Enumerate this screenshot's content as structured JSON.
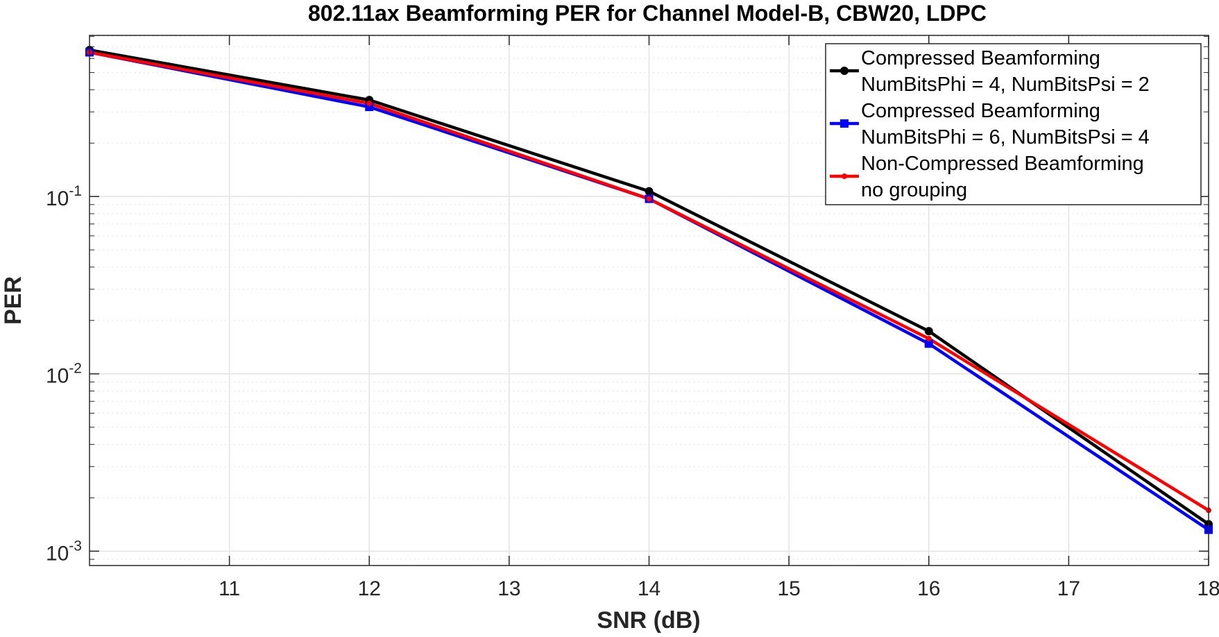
{
  "chart_data": {
    "type": "line",
    "title": "802.11ax Beamforming PER for Channel Model-B, CBW20, LDPC",
    "xlabel": "SNR (dB)",
    "ylabel": "PER",
    "xlim": [
      10,
      18
    ],
    "ylim": [
      0.00083,
      0.81
    ],
    "yscale": "log",
    "grid": true,
    "minor_grid": true,
    "legend_placement": "top-right",
    "x_ticks": [
      "11",
      "12",
      "13",
      "14",
      "15",
      "16",
      "17",
      "18"
    ],
    "y_ticks": [
      {
        "base": "10",
        "exp": "-1",
        "value": 0.1
      },
      {
        "base": "10",
        "exp": "-2",
        "value": 0.01
      },
      {
        "base": "10",
        "exp": "-3",
        "value": 0.001
      }
    ],
    "x": [
      10,
      12,
      14,
      16,
      18
    ],
    "series": [
      {
        "name": [
          "Compressed Beamforming",
          "NumBitsPhi = 4, NumBitsPsi = 2"
        ],
        "color": "#000000",
        "marker": "circle",
        "values": [
          0.67,
          0.35,
          0.107,
          0.0174,
          0.00142
        ]
      },
      {
        "name": [
          "Compressed Beamforming",
          "NumBitsPhi = 6, NumBitsPsi = 4"
        ],
        "color": "#0000ff",
        "marker": "square",
        "values": [
          0.65,
          0.32,
          0.097,
          0.0148,
          0.00132
        ]
      },
      {
        "name": [
          "Non-Compressed Beamforming",
          "no grouping"
        ],
        "color": "#ff0000",
        "marker": "point",
        "values": [
          0.65,
          0.335,
          0.097,
          0.0158,
          0.0017
        ]
      }
    ]
  }
}
